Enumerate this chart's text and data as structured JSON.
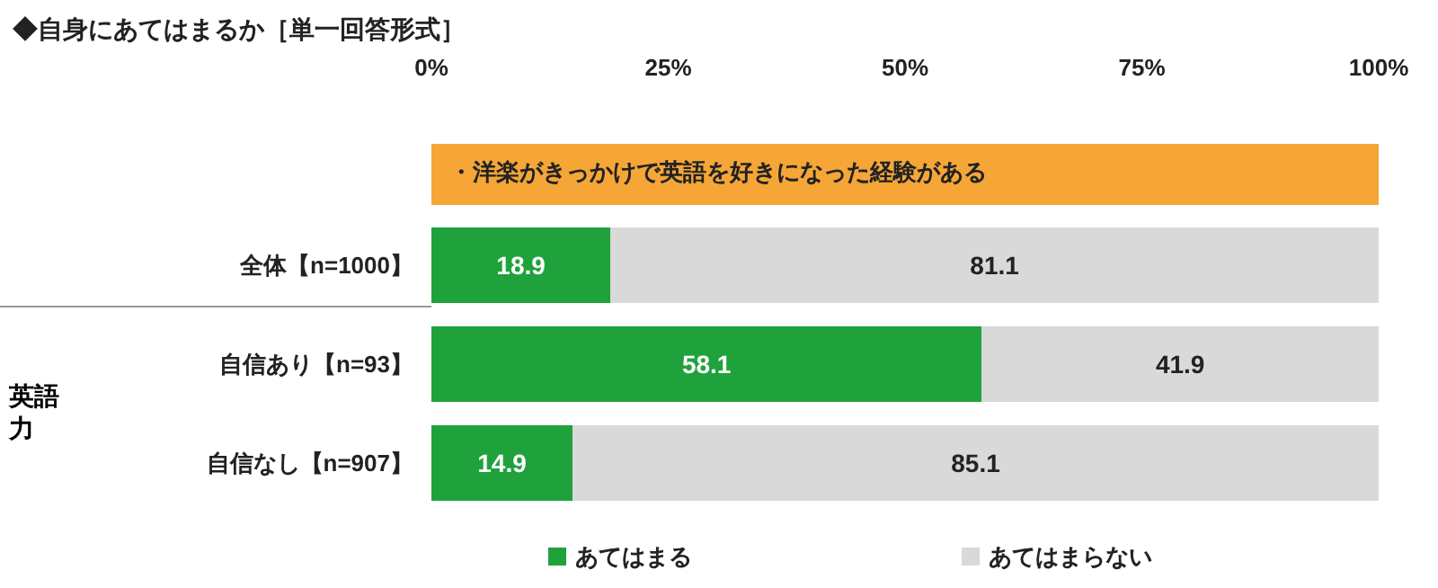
{
  "chart_data": {
    "type": "bar",
    "orientation": "horizontal",
    "stacked": true,
    "title": "◆自身にあてはまるか［単一回答形式］",
    "categories": [
      "全体【n=1000】",
      "自信あり【n=93】",
      "自信なし【n=907】"
    ],
    "series": [
      {
        "name": "あてはまる",
        "color": "#1fa23c",
        "values": [
          18.9,
          58.1,
          14.9
        ]
      },
      {
        "name": "あてはまらない",
        "color": "#d9d9d9",
        "values": [
          81.1,
          41.9,
          85.1
        ]
      }
    ],
    "xlim": [
      0,
      100
    ],
    "xticks": [
      {
        "value": 0,
        "label": "0%"
      },
      {
        "value": 25,
        "label": "25%"
      },
      {
        "value": 50,
        "label": "50%"
      },
      {
        "value": 75,
        "label": "75%"
      },
      {
        "value": 100,
        "label": "100%"
      }
    ],
    "data_labels": true,
    "legend": "bottom",
    "grid": false,
    "annotations": [
      "・洋楽がきっかけで英語を好きになった経験がある",
      "英語力"
    ]
  }
}
